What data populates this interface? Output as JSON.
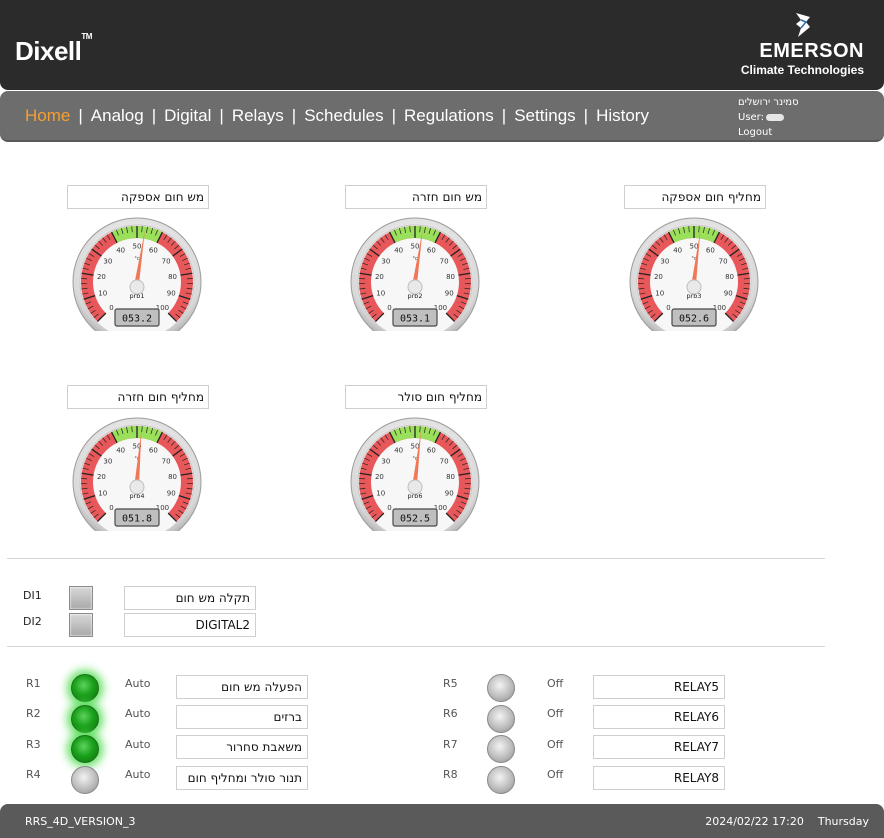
{
  "header": {
    "brand_left": "Dixell",
    "brand_tm": "TM",
    "brand_right_name": "EMERSON",
    "brand_right_sub": "Climate Technologies"
  },
  "nav": {
    "items": [
      {
        "label": "Home",
        "active": true
      },
      {
        "label": "Analog"
      },
      {
        "label": "Digital"
      },
      {
        "label": "Relays"
      },
      {
        "label": "Schedules"
      },
      {
        "label": "Regulations"
      },
      {
        "label": "Settings"
      },
      {
        "label": "History"
      }
    ]
  },
  "user": {
    "site": "סמינר ירושלים",
    "user_label": "User:",
    "logout": "Logout"
  },
  "gauges": [
    {
      "title": "מש חום אספקה",
      "probe": "prb1",
      "value": 53.2,
      "display": "053.2"
    },
    {
      "title": "מש חום חזרה",
      "probe": "prb2",
      "value": 53.1,
      "display": "053.1"
    },
    {
      "title": "מחליף חום אספקה",
      "probe": "prb3",
      "value": 52.6,
      "display": "052.6"
    },
    {
      "title": "מחליף חום חזרה",
      "probe": "prb4",
      "value": 51.8,
      "display": "051.8"
    },
    {
      "title": "מחליף חום סולר",
      "probe": "prb6",
      "value": 52.5,
      "display": "052.5"
    }
  ],
  "gauge_scale": {
    "min": 0,
    "max": 100,
    "ticks": [
      "0",
      "10",
      "20",
      "30",
      "40",
      "50",
      "60",
      "70",
      "80",
      "90",
      "100"
    ],
    "unit": "°c",
    "green_band": [
      40,
      60
    ]
  },
  "digital_inputs": [
    {
      "label": "DI1",
      "name": "תקלה מש חום"
    },
    {
      "label": "DI2",
      "name": "DIGITAL2"
    }
  ],
  "relays_left": [
    {
      "label": "R1",
      "mode": "Auto",
      "name": "הפעלה מש חום",
      "on": true
    },
    {
      "label": "R2",
      "mode": "Auto",
      "name": "ברזים",
      "on": true
    },
    {
      "label": "R3",
      "mode": "Auto",
      "name": "משאבת סחרור",
      "on": true
    },
    {
      "label": "R4",
      "mode": "Auto",
      "name": "תנור סולר ומחליף חום",
      "on": false
    }
  ],
  "relays_right": [
    {
      "label": "R5",
      "mode": "Off",
      "name": "RELAY5",
      "on": false
    },
    {
      "label": "R6",
      "mode": "Off",
      "name": "RELAY6",
      "on": false
    },
    {
      "label": "R7",
      "mode": "Off",
      "name": "RELAY7",
      "on": false
    },
    {
      "label": "R8",
      "mode": "Off",
      "name": "RELAY8",
      "on": false
    }
  ],
  "footer": {
    "version": "RRS_4D_VERSION_3",
    "datetime": "2024/02/22 17:20",
    "weekday": "Thursday"
  },
  "colors": {
    "header_bg": "#2b2b2b",
    "nav_bg": "#6d6d6d",
    "nav_active": "#f5a030",
    "gauge_red": "#e8585a",
    "gauge_green": "#9be05a",
    "needle": "#f07858",
    "lamp_on": "#1ba11b"
  }
}
